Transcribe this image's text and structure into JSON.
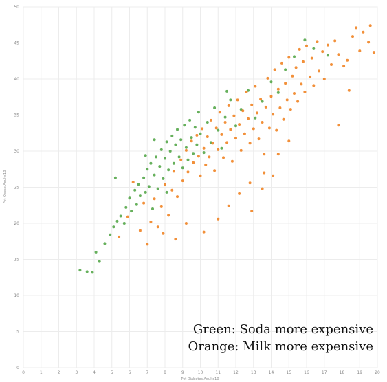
{
  "chart_data": {
    "type": "scatter",
    "title": "",
    "xlabel": "Pct Diabetes Adults10",
    "ylabel": "Pct Obese Adults10",
    "xlim": [
      0,
      20
    ],
    "ylim": [
      0,
      50
    ],
    "x_ticks": [
      0,
      1,
      2,
      3,
      4,
      5,
      6,
      7,
      8,
      9,
      10,
      11,
      12,
      13,
      14,
      15,
      16,
      17,
      18,
      19,
      20
    ],
    "y_ticks": [
      0,
      5,
      10,
      15,
      20,
      25,
      30,
      35,
      40,
      45,
      50
    ],
    "grid": true,
    "series": [
      {
        "color": "#4ba23f",
        "points": [
          [
            3.2,
            13.5
          ],
          [
            3.6,
            13.3
          ],
          [
            3.9,
            13.2
          ],
          [
            4.1,
            16.0
          ],
          [
            4.3,
            14.7
          ],
          [
            4.6,
            17.2
          ],
          [
            4.9,
            18.4
          ],
          [
            5.1,
            19.5
          ],
          [
            5.3,
            20.3
          ],
          [
            5.5,
            21.0
          ],
          [
            5.7,
            20.0
          ],
          [
            5.8,
            22.2
          ],
          [
            6.0,
            23.5
          ],
          [
            6.1,
            21.7
          ],
          [
            6.3,
            24.6
          ],
          [
            6.4,
            22.6
          ],
          [
            6.5,
            25.4
          ],
          [
            6.6,
            23.8
          ],
          [
            6.8,
            26.3
          ],
          [
            6.9,
            24.3
          ],
          [
            7.0,
            27.5
          ],
          [
            7.1,
            25.1
          ],
          [
            7.2,
            28.3
          ],
          [
            7.3,
            22.0
          ],
          [
            7.4,
            26.7
          ],
          [
            7.5,
            29.2
          ],
          [
            7.6,
            24.8
          ],
          [
            7.7,
            27.9
          ],
          [
            7.8,
            30.2
          ],
          [
            7.9,
            26.2
          ],
          [
            8.0,
            29.0
          ],
          [
            8.1,
            31.3
          ],
          [
            8.2,
            27.4
          ],
          [
            8.3,
            30.0
          ],
          [
            8.4,
            32.1
          ],
          [
            8.5,
            28.3
          ],
          [
            8.6,
            30.9
          ],
          [
            8.7,
            33.0
          ],
          [
            8.8,
            29.2
          ],
          [
            8.9,
            31.6
          ],
          [
            9.0,
            27.7
          ],
          [
            9.1,
            33.6
          ],
          [
            9.2,
            30.5
          ],
          [
            9.3,
            28.8
          ],
          [
            9.4,
            34.3
          ],
          [
            9.5,
            31.9
          ],
          [
            9.6,
            29.7
          ],
          [
            9.7,
            33.3
          ],
          [
            9.8,
            30.9
          ],
          [
            9.9,
            35.4
          ],
          [
            10.0,
            32.4
          ],
          [
            10.2,
            29.8
          ],
          [
            10.4,
            34.0
          ],
          [
            10.6,
            31.2
          ],
          [
            10.8,
            36.0
          ],
          [
            11.0,
            32.9
          ],
          [
            11.2,
            30.4
          ],
          [
            11.4,
            34.7
          ],
          [
            11.7,
            37.1
          ],
          [
            12.0,
            33.5
          ],
          [
            12.3,
            35.8
          ],
          [
            12.7,
            38.4
          ],
          [
            13.1,
            34.6
          ],
          [
            13.5,
            36.9
          ],
          [
            14.0,
            39.6
          ],
          [
            14.4,
            38.1
          ],
          [
            14.8,
            41.3
          ],
          [
            15.3,
            43.1
          ],
          [
            16.4,
            44.2
          ],
          [
            17.2,
            43.3
          ],
          [
            11.5,
            38.3
          ],
          [
            15.9,
            45.4
          ],
          [
            6.9,
            29.4
          ],
          [
            7.4,
            31.6
          ],
          [
            8.1,
            24.3
          ],
          [
            5.2,
            26.3
          ]
        ]
      },
      {
        "color": "#f07c18",
        "points": [
          [
            5.4,
            18.1
          ],
          [
            5.9,
            20.9
          ],
          [
            6.2,
            25.7
          ],
          [
            6.6,
            19.0
          ],
          [
            6.8,
            22.8
          ],
          [
            7.0,
            17.1
          ],
          [
            7.2,
            20.2
          ],
          [
            7.4,
            23.4
          ],
          [
            7.6,
            19.5
          ],
          [
            7.8,
            22.3
          ],
          [
            8.0,
            25.4
          ],
          [
            8.2,
            21.1
          ],
          [
            8.4,
            24.6
          ],
          [
            8.5,
            27.2
          ],
          [
            8.7,
            23.7
          ],
          [
            8.9,
            28.8
          ],
          [
            9.0,
            25.9
          ],
          [
            9.2,
            30.1
          ],
          [
            9.3,
            27.1
          ],
          [
            9.5,
            31.4
          ],
          [
            9.6,
            28.4
          ],
          [
            9.8,
            32.2
          ],
          [
            9.9,
            29.3
          ],
          [
            10.0,
            26.6
          ],
          [
            10.1,
            33.1
          ],
          [
            10.2,
            30.4
          ],
          [
            10.3,
            28.1
          ],
          [
            10.4,
            32.0
          ],
          [
            10.5,
            29.2
          ],
          [
            10.6,
            34.3
          ],
          [
            10.7,
            31.1
          ],
          [
            10.8,
            27.3
          ],
          [
            10.9,
            33.2
          ],
          [
            11.0,
            30.2
          ],
          [
            11.1,
            35.4
          ],
          [
            11.2,
            32.3
          ],
          [
            11.3,
            29.1
          ],
          [
            11.4,
            34.0
          ],
          [
            11.5,
            31.2
          ],
          [
            11.6,
            36.3
          ],
          [
            11.7,
            33.0
          ],
          [
            11.8,
            28.6
          ],
          [
            11.9,
            34.9
          ],
          [
            12.0,
            31.8
          ],
          [
            12.1,
            37.1
          ],
          [
            12.2,
            33.7
          ],
          [
            12.3,
            30.1
          ],
          [
            12.4,
            35.6
          ],
          [
            12.5,
            32.4
          ],
          [
            12.6,
            38.2
          ],
          [
            12.7,
            34.5
          ],
          [
            12.8,
            31.1
          ],
          [
            12.9,
            36.4
          ],
          [
            13.0,
            33.1
          ],
          [
            13.1,
            39.0
          ],
          [
            13.2,
            35.3
          ],
          [
            13.3,
            31.7
          ],
          [
            13.4,
            37.2
          ],
          [
            13.5,
            34.0
          ],
          [
            13.6,
            29.6
          ],
          [
            13.7,
            36.1
          ],
          [
            13.8,
            40.1
          ],
          [
            13.9,
            33.2
          ],
          [
            14.0,
            37.6
          ],
          [
            14.1,
            35.1
          ],
          [
            14.2,
            41.3
          ],
          [
            14.3,
            32.9
          ],
          [
            14.4,
            38.6
          ],
          [
            14.5,
            36.0
          ],
          [
            14.6,
            42.2
          ],
          [
            14.7,
            34.4
          ],
          [
            14.8,
            39.4
          ],
          [
            14.9,
            37.1
          ],
          [
            15.0,
            43.0
          ],
          [
            15.1,
            35.8
          ],
          [
            15.2,
            40.4
          ],
          [
            15.3,
            38.0
          ],
          [
            15.4,
            41.6
          ],
          [
            15.5,
            36.9
          ],
          [
            15.6,
            44.1
          ],
          [
            15.7,
            39.3
          ],
          [
            15.8,
            42.4
          ],
          [
            15.9,
            38.2
          ],
          [
            16.0,
            44.6
          ],
          [
            16.2,
            40.3
          ],
          [
            16.3,
            42.9
          ],
          [
            16.4,
            39.1
          ],
          [
            16.6,
            45.2
          ],
          [
            16.7,
            41.1
          ],
          [
            16.9,
            43.8
          ],
          [
            17.0,
            40.0
          ],
          [
            17.2,
            44.7
          ],
          [
            17.4,
            42.0
          ],
          [
            17.6,
            45.3
          ],
          [
            17.8,
            43.4
          ],
          [
            18.1,
            41.8
          ],
          [
            18.3,
            42.6
          ],
          [
            18.6,
            45.9
          ],
          [
            18.8,
            47.1
          ],
          [
            19.0,
            43.9
          ],
          [
            19.2,
            46.5
          ],
          [
            19.5,
            45.1
          ],
          [
            19.6,
            47.4
          ],
          [
            19.8,
            43.7
          ],
          [
            10.2,
            18.8
          ],
          [
            11.0,
            20.6
          ],
          [
            11.6,
            22.4
          ],
          [
            12.2,
            24.1
          ],
          [
            12.8,
            25.6
          ],
          [
            13.6,
            27.0
          ],
          [
            14.4,
            29.6
          ],
          [
            15.0,
            31.4
          ],
          [
            17.8,
            33.6
          ],
          [
            18.4,
            38.4
          ],
          [
            9.2,
            20.0
          ],
          [
            8.6,
            17.8
          ],
          [
            7.9,
            18.6
          ],
          [
            12.9,
            21.7
          ],
          [
            13.5,
            24.8
          ],
          [
            14.1,
            26.6
          ]
        ]
      }
    ],
    "annotations": [
      "Green: Soda more expensive",
      "Orange: Milk more expensive"
    ]
  }
}
